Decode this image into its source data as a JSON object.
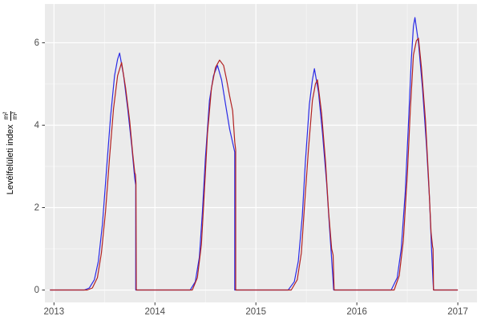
{
  "figure": {
    "background": "#ffffff",
    "panel_background": "#ebebeb",
    "grid_major_color": "#ffffff",
    "grid_minor_color": "#f7f7f7",
    "axis_text_color": "#4d4d4d",
    "tick_mark_color": "#333333"
  },
  "chart_data": {
    "type": "line",
    "title": "",
    "xlabel": "",
    "ylabel": "Levélfelületi index",
    "ylabel_unit_numerator": "m²",
    "ylabel_unit_denominator": "m²",
    "legend": "none",
    "grid": true,
    "xlim": [
      2012.91,
      2017.19
    ],
    "ylim": [
      -0.3,
      6.94
    ],
    "x_ticks": [
      2013,
      2014,
      2015,
      2016,
      2017
    ],
    "x_minor_ticks": [
      2013.5,
      2014.5,
      2015.5,
      2016.5
    ],
    "y_ticks": [
      0,
      2,
      4,
      6
    ],
    "y_minor_ticks": [
      1,
      3,
      5
    ],
    "series": [
      {
        "name": "lai-series-blue",
        "color": "#2a2ae6",
        "points": [
          [
            2012.96,
            0
          ],
          [
            2013.3,
            0
          ],
          [
            2013.35,
            0.05
          ],
          [
            2013.4,
            0.25
          ],
          [
            2013.44,
            0.7
          ],
          [
            2013.48,
            1.6
          ],
          [
            2013.52,
            2.9
          ],
          [
            2013.56,
            4.2
          ],
          [
            2013.6,
            5.2
          ],
          [
            2013.63,
            5.6
          ],
          [
            2013.65,
            5.75
          ],
          [
            2013.69,
            5.2
          ],
          [
            2013.73,
            4.4
          ],
          [
            2013.77,
            3.5
          ],
          [
            2013.8,
            2.7
          ],
          [
            2013.81,
            2.55
          ],
          [
            2013.81,
            0
          ],
          [
            2014.35,
            0
          ],
          [
            2014.4,
            0.2
          ],
          [
            2014.44,
            0.8
          ],
          [
            2014.47,
            1.9
          ],
          [
            2014.5,
            3.2
          ],
          [
            2014.54,
            4.6
          ],
          [
            2014.58,
            5.2
          ],
          [
            2014.62,
            5.45
          ],
          [
            2014.66,
            5.1
          ],
          [
            2014.7,
            4.5
          ],
          [
            2014.74,
            3.9
          ],
          [
            2014.79,
            3.35
          ],
          [
            2014.79,
            0
          ],
          [
            2015.32,
            0
          ],
          [
            2015.38,
            0.2
          ],
          [
            2015.42,
            0.7
          ],
          [
            2015.46,
            1.8
          ],
          [
            2015.49,
            3.1
          ],
          [
            2015.53,
            4.5
          ],
          [
            2015.56,
            5.1
          ],
          [
            2015.58,
            5.37
          ],
          [
            2015.62,
            4.8
          ],
          [
            2015.66,
            3.8
          ],
          [
            2015.7,
            2.6
          ],
          [
            2015.73,
            1.5
          ],
          [
            2015.76,
            0.4
          ],
          [
            2015.77,
            0
          ],
          [
            2016.34,
            0
          ],
          [
            2016.4,
            0.3
          ],
          [
            2016.44,
            1.0
          ],
          [
            2016.48,
            2.4
          ],
          [
            2016.51,
            4.0
          ],
          [
            2016.54,
            5.6
          ],
          [
            2016.56,
            6.4
          ],
          [
            2016.575,
            6.61
          ],
          [
            2016.61,
            6.0
          ],
          [
            2016.65,
            4.9
          ],
          [
            2016.69,
            3.5
          ],
          [
            2016.72,
            2.2
          ],
          [
            2016.74,
            1.0
          ],
          [
            2016.755,
            0.2
          ],
          [
            2016.76,
            0
          ],
          [
            2017.0,
            0
          ]
        ]
      },
      {
        "name": "lai-series-red",
        "color": "#b22222",
        "points": [
          [
            2012.96,
            0
          ],
          [
            2013.33,
            0
          ],
          [
            2013.38,
            0.05
          ],
          [
            2013.43,
            0.3
          ],
          [
            2013.47,
            0.9
          ],
          [
            2013.51,
            1.9
          ],
          [
            2013.55,
            3.2
          ],
          [
            2013.59,
            4.4
          ],
          [
            2013.63,
            5.2
          ],
          [
            2013.67,
            5.52
          ],
          [
            2013.71,
            4.9
          ],
          [
            2013.75,
            4.1
          ],
          [
            2013.78,
            3.3
          ],
          [
            2013.8,
            2.85
          ],
          [
            2013.807,
            2.8
          ],
          [
            2013.812,
            2.6
          ],
          [
            2013.815,
            0
          ],
          [
            2014.37,
            0
          ],
          [
            2014.42,
            0.3
          ],
          [
            2014.46,
            1.1
          ],
          [
            2014.49,
            2.4
          ],
          [
            2014.52,
            3.8
          ],
          [
            2014.56,
            4.9
          ],
          [
            2014.6,
            5.4
          ],
          [
            2014.64,
            5.58
          ],
          [
            2014.68,
            5.45
          ],
          [
            2014.71,
            5.1
          ],
          [
            2014.74,
            4.7
          ],
          [
            2014.77,
            4.35
          ],
          [
            2014.79,
            3.6
          ],
          [
            2014.8,
            3.4
          ],
          [
            2014.8,
            0
          ],
          [
            2015.35,
            0
          ],
          [
            2015.41,
            0.25
          ],
          [
            2015.45,
            0.9
          ],
          [
            2015.48,
            2.0
          ],
          [
            2015.52,
            3.4
          ],
          [
            2015.56,
            4.6
          ],
          [
            2015.59,
            5.0
          ],
          [
            2015.61,
            5.1
          ],
          [
            2015.65,
            4.3
          ],
          [
            2015.69,
            3.1
          ],
          [
            2015.72,
            1.9
          ],
          [
            2015.75,
            1.0
          ],
          [
            2015.765,
            0.85
          ],
          [
            2015.775,
            0
          ],
          [
            2016.37,
            0
          ],
          [
            2016.42,
            0.35
          ],
          [
            2016.46,
            1.2
          ],
          [
            2016.5,
            2.8
          ],
          [
            2016.53,
            4.4
          ],
          [
            2016.56,
            5.7
          ],
          [
            2016.59,
            6.05
          ],
          [
            2016.61,
            6.11
          ],
          [
            2016.64,
            5.4
          ],
          [
            2016.68,
            4.1
          ],
          [
            2016.71,
            2.7
          ],
          [
            2016.735,
            1.4
          ],
          [
            2016.75,
            1.05
          ],
          [
            2016.755,
            1.0
          ],
          [
            2016.76,
            0
          ],
          [
            2017.0,
            0
          ]
        ]
      }
    ]
  }
}
